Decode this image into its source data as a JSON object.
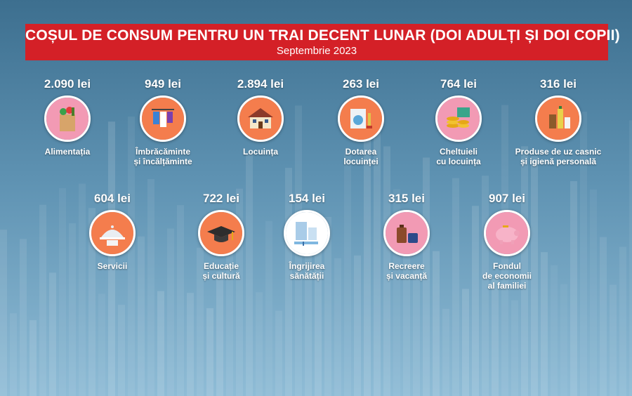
{
  "header": {
    "title": "COȘUL DE CONSUM PENTRU UN TRAI DECENT LUNAR (DOI ADULȚI ȘI DOI COPII)",
    "subtitle": "Septembrie 2023"
  },
  "colors": {
    "banner": "#d42027",
    "pink": "#f29ab4",
    "orange": "#f47d4d",
    "background": "#4f86a8"
  },
  "items": [
    {
      "price": "2.090 lei",
      "label1": "Alimentația",
      "label2": "",
      "label3": "",
      "icon": "grocery-bag-icon",
      "color": "#f29ab4"
    },
    {
      "price": "949 lei",
      "label1": "Îmbrăcăminte",
      "label2": "și încălțăminte",
      "label3": "",
      "icon": "clothes-rack-icon",
      "color": "#f47d4d"
    },
    {
      "price": "2.894 lei",
      "label1": "Locuința",
      "label2": "",
      "label3": "",
      "icon": "house-icon",
      "color": "#f47d4d"
    },
    {
      "price": "263 lei",
      "label1": "Dotarea",
      "label2": "locuinței",
      "label3": "",
      "icon": "washing-machine-icon",
      "color": "#f47d4d"
    },
    {
      "price": "764 lei",
      "label1": "Cheltuieli",
      "label2": "cu locuința",
      "label3": "",
      "icon": "coins-icon",
      "color": "#f29ab4"
    },
    {
      "price": "316 lei",
      "label1": "Produse de uz casnic",
      "label2": "și igienă personală",
      "label3": "",
      "icon": "cleaning-products-icon",
      "color": "#f47d4d"
    },
    {
      "price": "604 lei",
      "label1": "Servicii",
      "label2": "",
      "label3": "",
      "icon": "food-cloche-icon",
      "color": "#f47d4d"
    },
    {
      "price": "722 lei",
      "label1": "Educație",
      "label2": "și cultură",
      "label3": "",
      "icon": "graduation-cap-icon",
      "color": "#f47d4d"
    },
    {
      "price": "154 lei",
      "label1": "Îngrijirea",
      "label2": "sănătății",
      "label3": "",
      "icon": "hospital-syringe-icon",
      "color": "#f47d4d"
    },
    {
      "price": "315 lei",
      "label1": "Recreere",
      "label2": "și vacanță",
      "label3": "",
      "icon": "suitcase-icon",
      "color": "#f29ab4"
    },
    {
      "price": "907 lei",
      "label1": "Fondul",
      "label2": "de economii",
      "label3": "al familiei",
      "icon": "piggy-bank-icon",
      "color": "#f29ab4"
    }
  ]
}
